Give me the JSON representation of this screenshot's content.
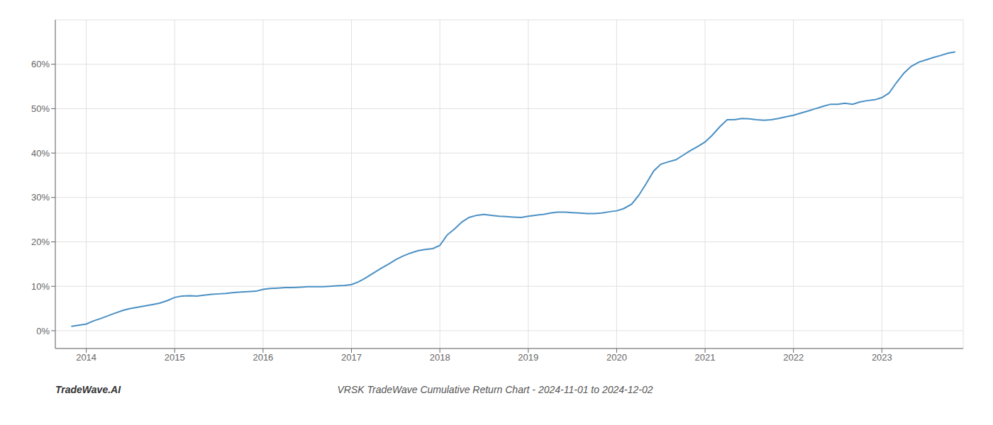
{
  "chart_data": {
    "type": "line",
    "title": "VRSK TradeWave Cumulative Return Chart - 2024-11-01 to 2024-12-02",
    "annotations": [
      "TradeWave.AI"
    ],
    "color": "#4a90c4",
    "grid": true,
    "x": [
      2013.83,
      2014.0,
      2014.08,
      2014.17,
      2014.25,
      2014.33,
      2014.42,
      2014.5,
      2014.58,
      2014.67,
      2014.75,
      2014.83,
      2014.92,
      2015.0,
      2015.08,
      2015.17,
      2015.25,
      2015.33,
      2015.42,
      2015.5,
      2015.58,
      2015.67,
      2015.75,
      2015.83,
      2015.92,
      2016.0,
      2016.08,
      2016.17,
      2016.25,
      2016.33,
      2016.42,
      2016.5,
      2016.58,
      2016.67,
      2016.75,
      2016.83,
      2016.92,
      2017.0,
      2017.08,
      2017.17,
      2017.25,
      2017.33,
      2017.42,
      2017.5,
      2017.58,
      2017.67,
      2017.75,
      2017.83,
      2017.92,
      2018.0,
      2018.08,
      2018.17,
      2018.25,
      2018.33,
      2018.42,
      2018.5,
      2018.58,
      2018.67,
      2018.75,
      2018.83,
      2018.92,
      2019.0,
      2019.08,
      2019.17,
      2019.25,
      2019.33,
      2019.42,
      2019.5,
      2019.58,
      2019.67,
      2019.75,
      2019.83,
      2019.92,
      2020.0,
      2020.08,
      2020.17,
      2020.25,
      2020.33,
      2020.42,
      2020.5,
      2020.58,
      2020.67,
      2020.75,
      2020.83,
      2020.92,
      2021.0,
      2021.08,
      2021.17,
      2021.25,
      2021.33,
      2021.42,
      2021.5,
      2021.58,
      2021.67,
      2021.75,
      2021.83,
      2021.92,
      2022.0,
      2022.08,
      2022.17,
      2022.25,
      2022.33,
      2022.42,
      2022.5,
      2022.58,
      2022.67,
      2022.75,
      2022.83,
      2022.92,
      2023.0,
      2023.08,
      2023.17,
      2023.25,
      2023.33,
      2023.42,
      2023.5,
      2023.58,
      2023.67,
      2023.75,
      2023.83
    ],
    "values": [
      1.0,
      1.5,
      2.2,
      2.8,
      3.4,
      4.0,
      4.6,
      5.0,
      5.3,
      5.6,
      5.9,
      6.2,
      6.8,
      7.5,
      7.8,
      7.9,
      7.8,
      8.0,
      8.2,
      8.3,
      8.4,
      8.6,
      8.7,
      8.8,
      8.9,
      9.3,
      9.5,
      9.6,
      9.7,
      9.7,
      9.8,
      9.9,
      9.9,
      9.9,
      10.0,
      10.1,
      10.2,
      10.4,
      11.0,
      12.0,
      13.0,
      14.0,
      15.0,
      16.0,
      16.8,
      17.5,
      18.0,
      18.3,
      18.5,
      19.2,
      21.5,
      23.0,
      24.5,
      25.5,
      26.0,
      26.2,
      26.0,
      25.8,
      25.7,
      25.6,
      25.5,
      25.8,
      26.0,
      26.2,
      26.5,
      26.7,
      26.7,
      26.6,
      26.5,
      26.4,
      26.4,
      26.5,
      26.8,
      27.0,
      27.5,
      28.5,
      30.5,
      33.0,
      36.0,
      37.5,
      38.0,
      38.5,
      39.5,
      40.5,
      41.5,
      42.5,
      44.0,
      46.0,
      47.5,
      47.5,
      47.8,
      47.7,
      47.5,
      47.4,
      47.5,
      47.8,
      48.2,
      48.5,
      49.0,
      49.5,
      50.0,
      50.5,
      51.0,
      51.0,
      51.2,
      51.0,
      51.5,
      51.8,
      52.0,
      52.5,
      53.5,
      56.0,
      58.0,
      59.5,
      60.5,
      61.0,
      61.5,
      62.0,
      62.5,
      62.8
    ],
    "xlim": [
      2013.65,
      2023.92
    ],
    "xticks": [
      2014,
      2015,
      2016,
      2017,
      2018,
      2019,
      2020,
      2021,
      2022,
      2023
    ],
    "ylim": [
      -4,
      70
    ],
    "yticks": [
      {
        "value": 0,
        "label": "0%"
      },
      {
        "value": 10,
        "label": "10%"
      },
      {
        "value": 20,
        "label": "20%"
      },
      {
        "value": 30,
        "label": "30%"
      },
      {
        "value": 40,
        "label": "40%"
      },
      {
        "value": 50,
        "label": "50%"
      },
      {
        "value": 60,
        "label": "60%"
      }
    ]
  }
}
